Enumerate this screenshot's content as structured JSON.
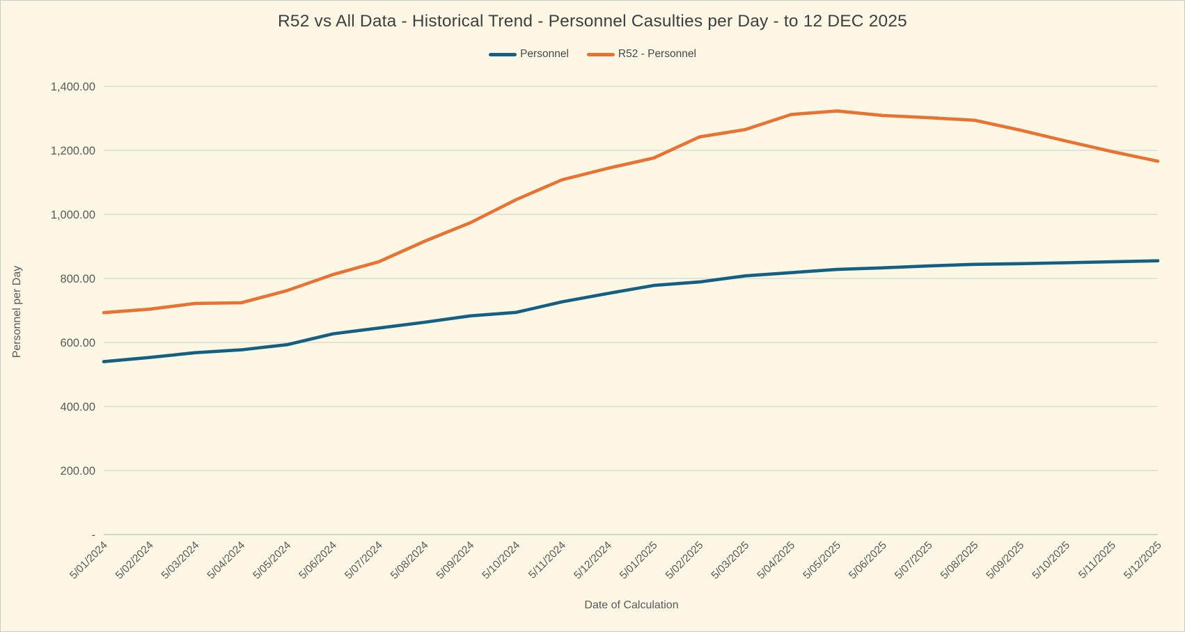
{
  "chart_window": {
    "background": "#FCF6E4",
    "border_color": "#C9C9C9"
  },
  "chart_data": {
    "type": "line",
    "title": "R52 vs All Data - Historical Trend - Personnel Casulties per Day - to 12 DEC 2025",
    "xlabel": "Date of Calculation",
    "ylabel": "Personnel per Day",
    "ylim": [
      0,
      1400
    ],
    "y_tick_step": 200,
    "y_tick_labels": [
      "-",
      "200.00",
      "400.00",
      "600.00",
      "800.00",
      "1,000.00",
      "1,200.00",
      "1,400.00"
    ],
    "grid": "horizontal-only",
    "legend_position": "top-center",
    "text_color": "#595959",
    "title_color": "#3F3F3F",
    "gridline_color": "#DBDAD4",
    "baseline_color": "#C7C6C0",
    "categories": [
      "5/01/2024",
      "5/02/2024",
      "5/03/2024",
      "5/04/2024",
      "5/05/2024",
      "5/06/2024",
      "5/07/2024",
      "5/08/2024",
      "5/09/2024",
      "5/10/2024",
      "5/11/2024",
      "5/12/2024",
      "5/01/2025",
      "5/02/2025",
      "5/03/2025",
      "5/04/2025",
      "5/05/2025",
      "5/06/2025",
      "5/07/2025",
      "5/08/2025",
      "5/09/2025",
      "5/10/2025",
      "5/11/2025",
      "5/12/2025"
    ],
    "series": [
      {
        "name": "Personnel",
        "color": "#156082",
        "values": [
          540,
          553,
          568,
          577,
          593,
          627,
          645,
          663,
          683,
          694,
          727,
          753,
          778,
          789,
          808,
          818,
          828,
          833,
          839,
          844,
          846,
          849,
          852,
          855
        ]
      },
      {
        "name": "R52 - Personnel",
        "color": "#E97132",
        "values": [
          693,
          704,
          722,
          724,
          762,
          812,
          852,
          916,
          974,
          1046,
          1108,
          1144,
          1176,
          1242,
          1265,
          1312,
          1323,
          1309,
          1302,
          1294,
          1263,
          1229,
          1196,
          1166
        ]
      }
    ]
  }
}
